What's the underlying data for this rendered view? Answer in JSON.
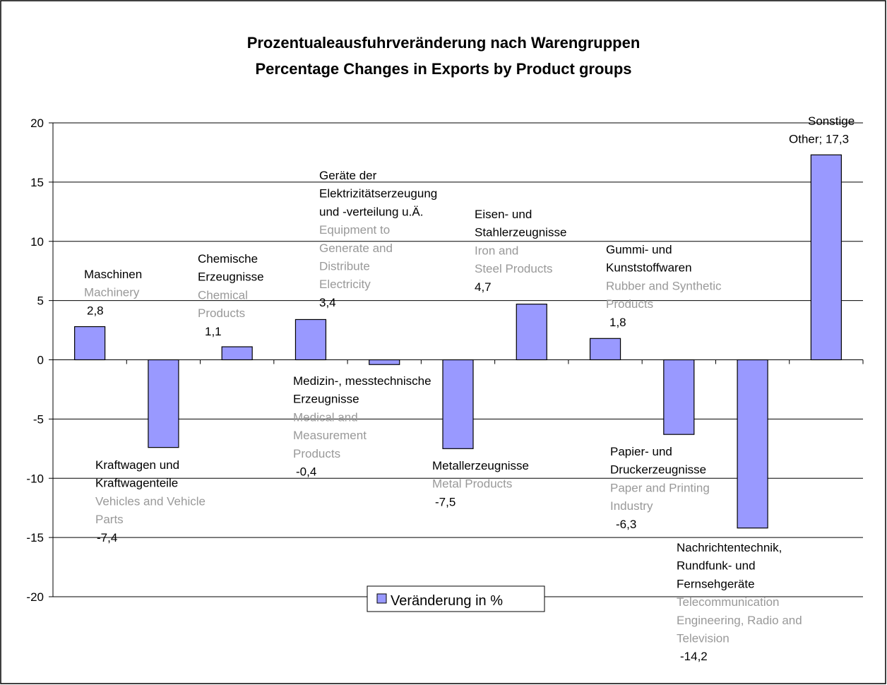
{
  "chart_data": {
    "type": "bar",
    "title": "Prozentualeausfuhrveränderung nach Warengruppen",
    "subtitle": "Percentage Changes in Exports by Product groups",
    "categories": [
      {
        "de": [
          "Maschinen"
        ],
        "en": [
          "Machinery"
        ]
      },
      {
        "de": [
          "Kraftwagen und",
          "Kraftwagenteile"
        ],
        "en": [
          "Vehicles and Vehicle",
          "Parts"
        ]
      },
      {
        "de": [
          "Chemische",
          "Erzeugnisse"
        ],
        "en": [
          "Chemical",
          "Products"
        ]
      },
      {
        "de": [
          "Geräte der",
          "Elektrizitätserzeugung",
          "und -verteilung u.Ä."
        ],
        "en": [
          "Equipment to",
          "Generate and",
          "Distribute",
          "Electricity"
        ]
      },
      {
        "de": [
          "Medizin-, messtechnische",
          "Erzeugnisse"
        ],
        "en": [
          "Medical and",
          "Measurement",
          "Products"
        ]
      },
      {
        "de": [
          "Metallerzeugnisse"
        ],
        "en": [
          "Metal Products"
        ]
      },
      {
        "de": [
          "Eisen- und",
          "Stahlerzeugnisse"
        ],
        "en": [
          "Iron and",
          "Steel Products"
        ]
      },
      {
        "de": [
          "Gummi- und",
          "Kunststoffwaren"
        ],
        "en": [
          "Rubber and Synthetic",
          "Products"
        ]
      },
      {
        "de": [
          "Papier- und",
          "Druckerzeugnisse"
        ],
        "en": [
          "Paper and Printing",
          "Industry"
        ]
      },
      {
        "de": [
          "Nachrichtentechnik,",
          "Rundfunk- und",
          "Fernsehgeräte"
        ],
        "en": [
          "Telecommunication",
          "Engineering, Radio and",
          "Television"
        ]
      },
      {
        "de": [
          "Sonstige"
        ],
        "en": []
      }
    ],
    "series": [
      {
        "name": "Veränderung in %",
        "color": "#9999ff",
        "values": [
          2.8,
          -7.4,
          1.1,
          3.4,
          -0.4,
          -7.5,
          4.7,
          1.8,
          -6.3,
          -14.2,
          17.3
        ],
        "value_labels": [
          "2,8",
          "-7,4",
          "1,1",
          "3,4",
          "-0,4",
          "-7,5",
          "4,7",
          "1,8",
          "-6,3",
          "-14,2",
          "Other; 17,3"
        ]
      }
    ],
    "ylim": [
      -20,
      20
    ],
    "yticks": [
      -20,
      -15,
      -10,
      -5,
      0,
      5,
      10,
      15,
      20
    ],
    "grid": true,
    "legend": "bottom"
  }
}
